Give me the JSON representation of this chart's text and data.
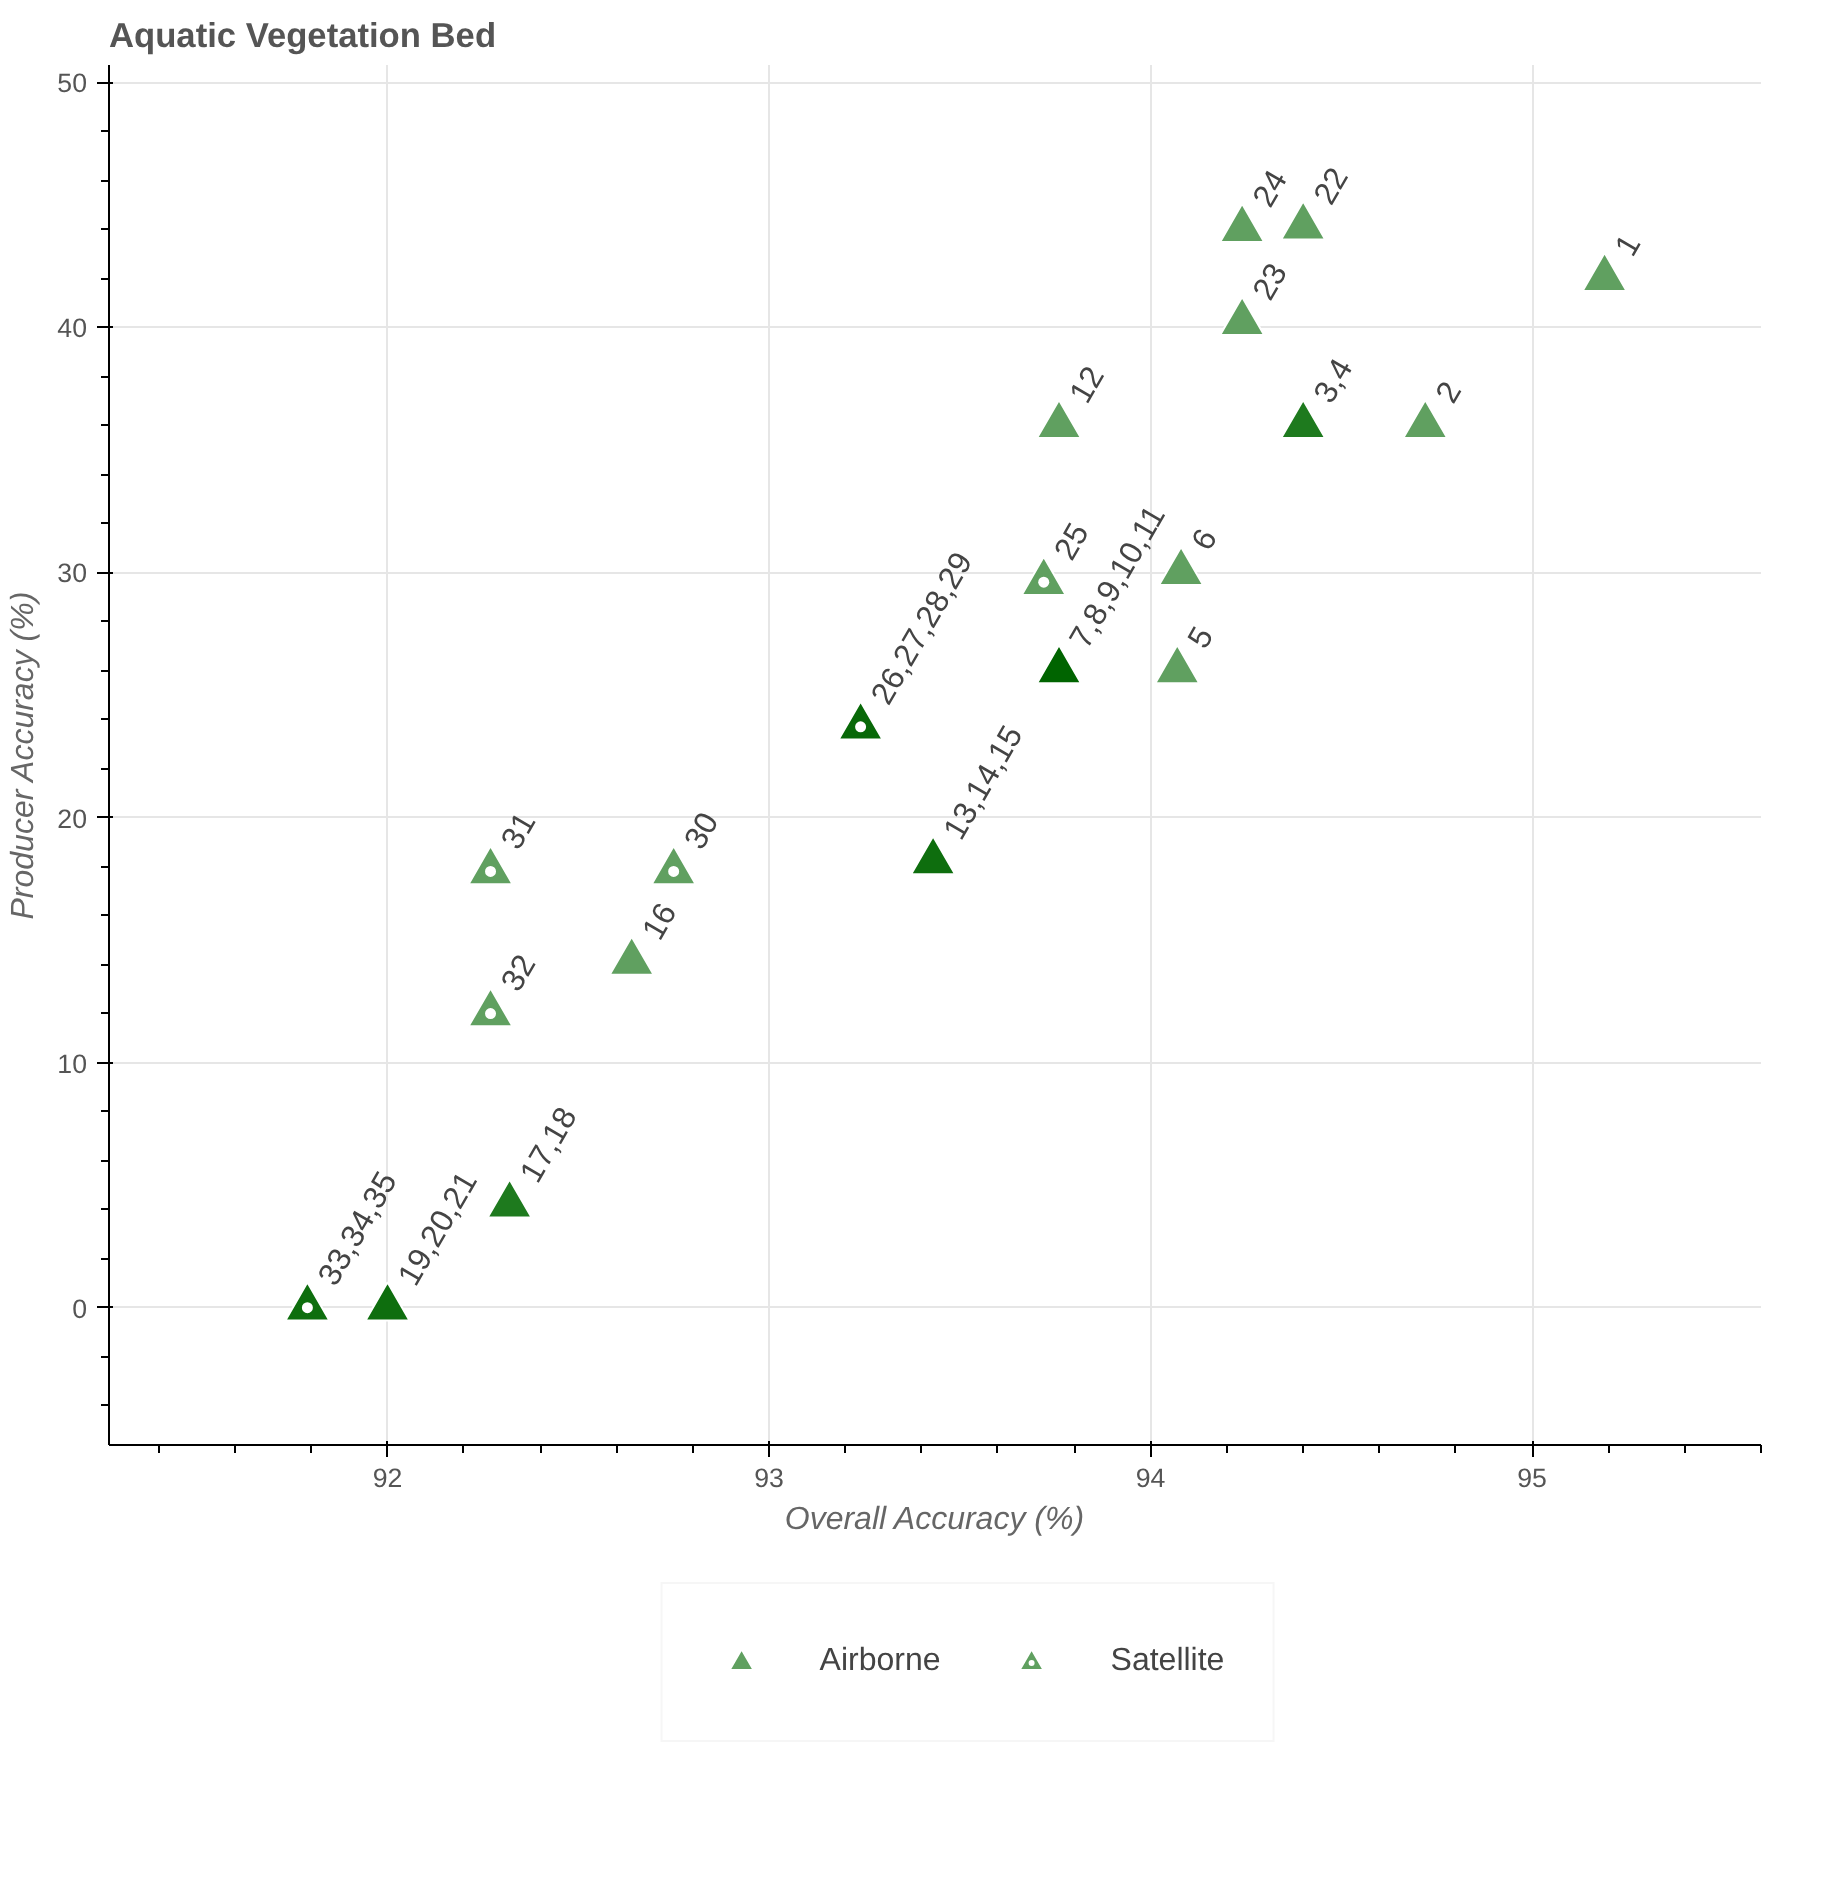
{
  "chart_data": {
    "type": "scatter",
    "title": "Aquatic Vegetation Bed",
    "xlabel": "Overall Accuracy (%)",
    "ylabel": "Producer Accuracy (%)",
    "xlim": [
      91.27,
      95.6
    ],
    "ylim": [
      -5.6,
      50.7
    ],
    "xticks": [
      92,
      93,
      94,
      95
    ],
    "yticks": [
      0,
      10,
      20,
      30,
      40,
      50
    ],
    "grid": true,
    "legend": "bottom",
    "series": [
      {
        "name": "Airborne",
        "marker": "triangle",
        "color": "#60a060",
        "x": [
          95.19,
          94.72,
          94.4,
          94.07,
          94.08,
          93.76,
          93.76,
          93.43,
          92.64,
          92.32,
          92.0,
          94.4,
          94.24,
          94.24
        ],
        "values": [
          42,
          36,
          36,
          26,
          30,
          26,
          36,
          18.2,
          14.1,
          4.2,
          0,
          44.1,
          40.2,
          44
        ],
        "colors": [
          "#60a060",
          "#60a060",
          "#1e7a1e",
          "#60a060",
          "#60a060",
          "#006400",
          "#60a060",
          "#0e6e0e",
          "#60a060",
          "#1e7a1e",
          "#0e6e0e",
          "#60a060",
          "#60a060",
          "#60a060"
        ]
      },
      {
        "name": "Satellite",
        "marker": "triangle_dot",
        "color": "#60a060",
        "x": [
          93.72,
          93.24,
          92.75,
          92.27,
          92.27,
          91.79
        ],
        "values": [
          29.6,
          23.7,
          17.8,
          17.8,
          12,
          0
        ],
        "colors": [
          "#60a060",
          "#086808",
          "#60a060",
          "#60a060",
          "#60a060",
          "#0e6e0e"
        ]
      }
    ],
    "annotations": [
      {
        "text": "1",
        "x": 95.19,
        "y": 42
      },
      {
        "text": "2",
        "x": 94.72,
        "y": 36
      },
      {
        "text": "3,4",
        "x": 94.4,
        "y": 36
      },
      {
        "text": "5",
        "x": 94.07,
        "y": 26
      },
      {
        "text": "6",
        "x": 94.08,
        "y": 30
      },
      {
        "text": "7,8,9,10,11",
        "x": 93.76,
        "y": 26
      },
      {
        "text": "12",
        "x": 93.76,
        "y": 36
      },
      {
        "text": "13,14,15",
        "x": 93.43,
        "y": 18.2
      },
      {
        "text": "16",
        "x": 92.64,
        "y": 14.1
      },
      {
        "text": "17,18",
        "x": 92.32,
        "y": 4.2
      },
      {
        "text": "19,20,21",
        "x": 92.0,
        "y": 0
      },
      {
        "text": "22",
        "x": 94.4,
        "y": 44.1
      },
      {
        "text": "23",
        "x": 94.24,
        "y": 40.2
      },
      {
        "text": "24",
        "x": 94.24,
        "y": 44
      },
      {
        "text": "25",
        "x": 93.72,
        "y": 29.6
      },
      {
        "text": "26,27,28,29",
        "x": 93.24,
        "y": 23.7
      },
      {
        "text": "30",
        "x": 92.75,
        "y": 17.8
      },
      {
        "text": "31",
        "x": 92.27,
        "y": 17.8
      },
      {
        "text": "32",
        "x": 92.27,
        "y": 12
      },
      {
        "text": "33,34,35",
        "x": 91.79,
        "y": 0
      }
    ]
  }
}
